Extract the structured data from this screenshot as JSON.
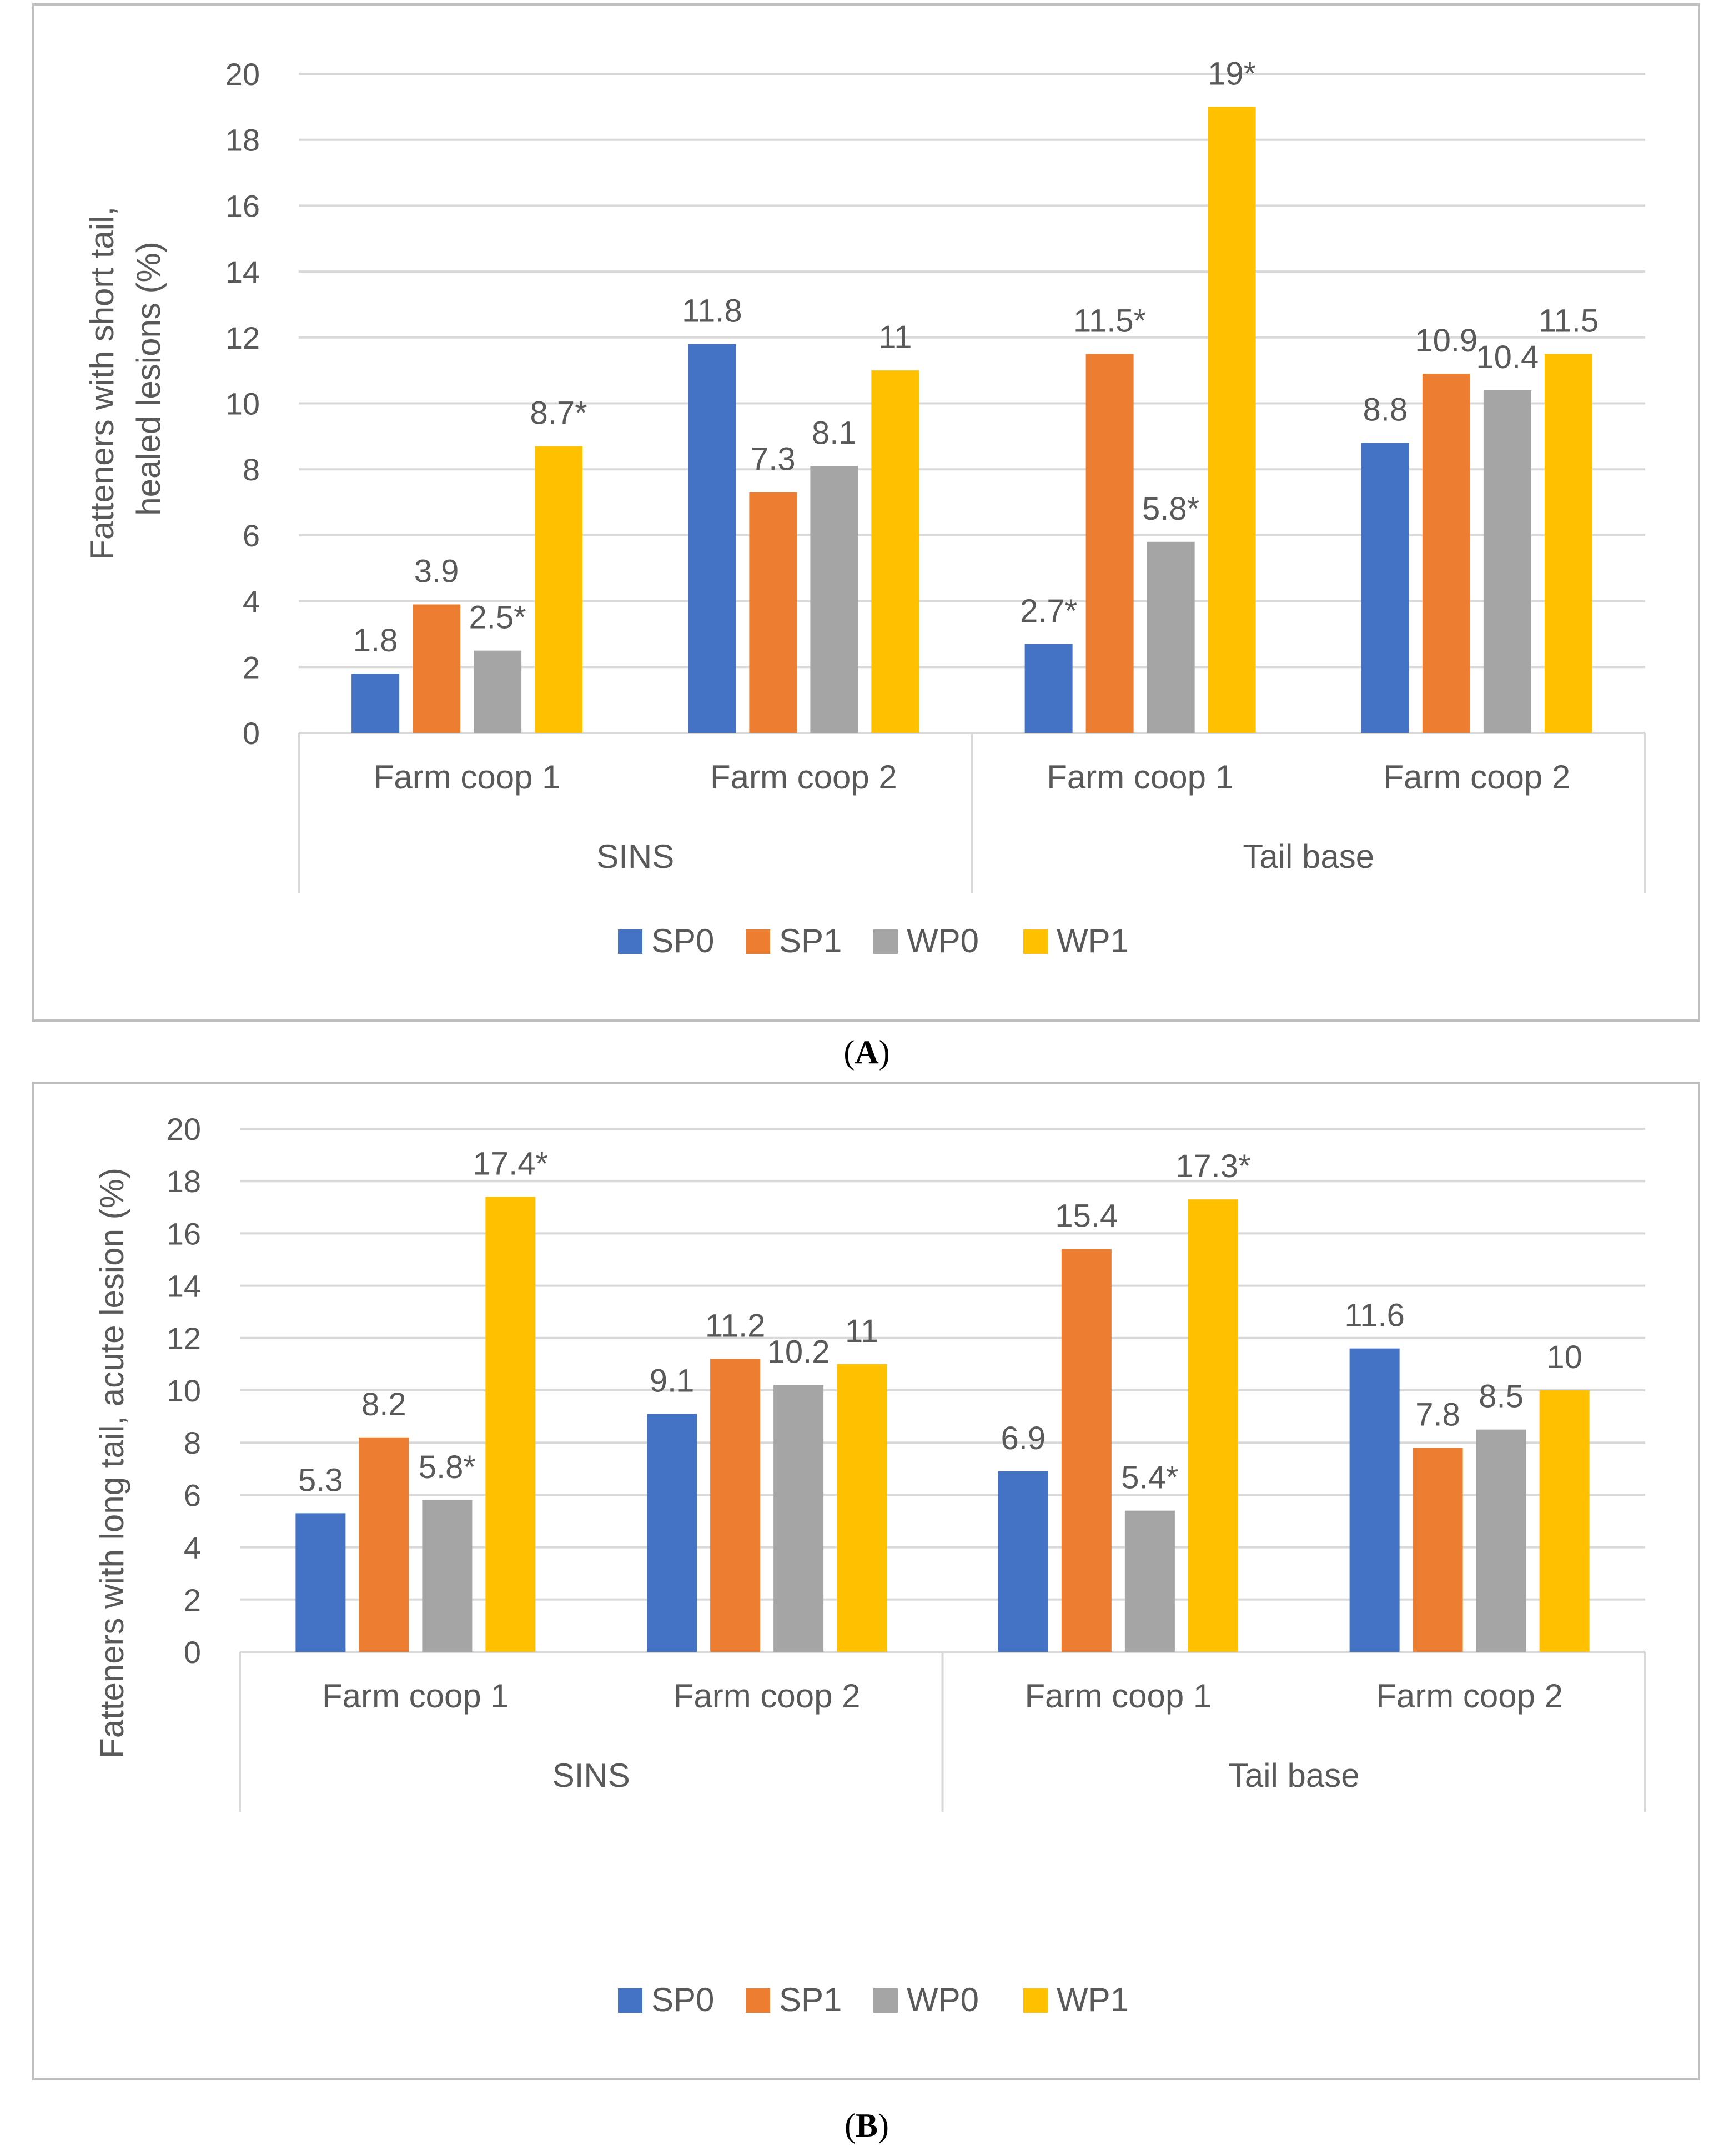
{
  "figure": {
    "panels": [
      "A",
      "B"
    ]
  },
  "colors": {
    "SP0": "#4472C4",
    "SP1": "#ED7D31",
    "WP0": "#A5A5A5",
    "WP1": "#FFC000",
    "gridline": "#D9D9D9",
    "frame": "#BFBFBF",
    "text": "#595959"
  },
  "chart_data": [
    {
      "type": "bar",
      "panel_label": "A",
      "ylabel_lines": [
        "Fatteners with short tail,",
        "healed lesions (%)"
      ],
      "ylim": [
        0,
        20
      ],
      "yticks": [
        0,
        2,
        4,
        6,
        8,
        10,
        12,
        14,
        16,
        18,
        20
      ],
      "grid": true,
      "legend_position": "bottom",
      "groups": [
        "SINS",
        "Tail base"
      ],
      "categories": [
        "Farm coop 1",
        "Farm coop 2",
        "Farm coop 1",
        "Farm coop 2"
      ],
      "series": [
        {
          "name": "SP0",
          "values": [
            1.8,
            11.8,
            2.7,
            8.8
          ],
          "labels": [
            "1.8",
            "11.8",
            "2.7*",
            "8.8"
          ]
        },
        {
          "name": "SP1",
          "values": [
            3.9,
            7.3,
            11.5,
            10.9
          ],
          "labels": [
            "3.9",
            "7.3",
            "11.5*",
            "10.9"
          ]
        },
        {
          "name": "WP0",
          "values": [
            2.5,
            8.1,
            5.8,
            10.4
          ],
          "labels": [
            "2.5*",
            "8.1",
            "5.8*",
            "10.4"
          ]
        },
        {
          "name": "WP1",
          "values": [
            8.7,
            11,
            19,
            11.5
          ],
          "labels": [
            "8.7*",
            "11",
            "19*",
            "11.5"
          ]
        }
      ]
    },
    {
      "type": "bar",
      "panel_label": "B",
      "ylabel_lines": [
        "Fatteners with long tail, acute lesion (%)"
      ],
      "ylim": [
        0,
        20
      ],
      "yticks": [
        0,
        2,
        4,
        6,
        8,
        10,
        12,
        14,
        16,
        18,
        20
      ],
      "grid": true,
      "legend_position": "bottom",
      "groups": [
        "SINS",
        "Tail base"
      ],
      "categories": [
        "Farm coop 1",
        "Farm coop 2",
        "Farm coop 1",
        "Farm coop 2"
      ],
      "series": [
        {
          "name": "SP0",
          "values": [
            5.3,
            9.1,
            6.9,
            11.6
          ],
          "labels": [
            "5.3",
            "9.1",
            "6.9",
            "11.6"
          ]
        },
        {
          "name": "SP1",
          "values": [
            8.2,
            11.2,
            15.4,
            7.8
          ],
          "labels": [
            "8.2",
            "11.2",
            "15.4",
            "7.8"
          ]
        },
        {
          "name": "WP0",
          "values": [
            5.8,
            10.2,
            5.4,
            8.5
          ],
          "labels": [
            "5.8*",
            "10.2",
            "5.4*",
            "8.5"
          ]
        },
        {
          "name": "WP1",
          "values": [
            17.4,
            11,
            17.3,
            10
          ],
          "labels": [
            "17.4*",
            "11",
            "17.3*",
            "10"
          ]
        }
      ]
    }
  ]
}
